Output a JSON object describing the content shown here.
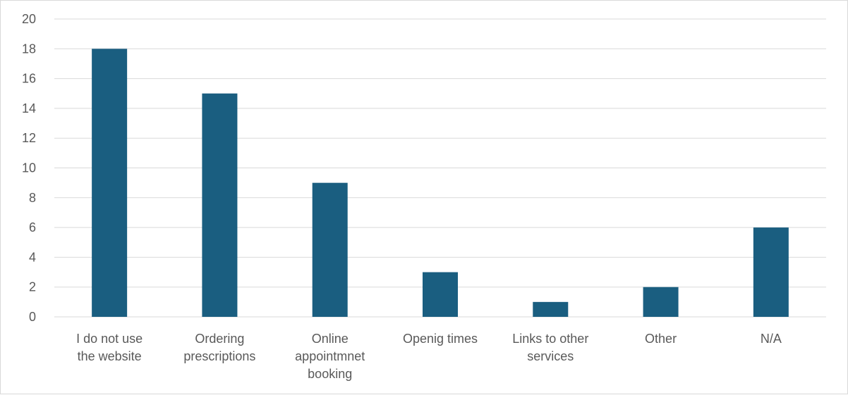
{
  "chart_data": {
    "type": "bar",
    "categories": [
      [
        "I do not use",
        "the website"
      ],
      [
        "Ordering",
        "prescriptions"
      ],
      [
        "Online",
        "appointmnet",
        "booking"
      ],
      [
        "Openig times"
      ],
      [
        "Links to other",
        "services"
      ],
      [
        "Other"
      ],
      [
        "N/A"
      ]
    ],
    "values": [
      18,
      15,
      9,
      3,
      1,
      2,
      6
    ],
    "ylim": [
      0,
      20
    ],
    "yticks": [
      0,
      2,
      4,
      6,
      8,
      10,
      12,
      14,
      16,
      18,
      20
    ],
    "grid": true,
    "bar_color": "#1a5e80",
    "grid_color": "#d9d9d9",
    "label_color": "#595959"
  }
}
